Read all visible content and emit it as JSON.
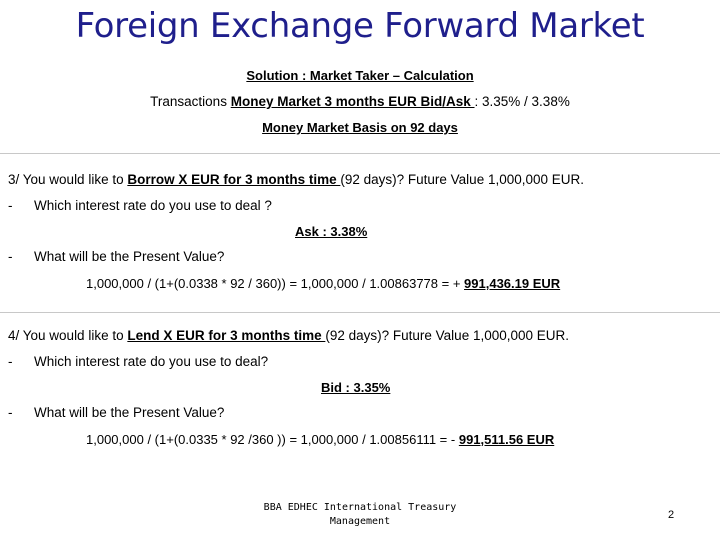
{
  "title": "Foreign Exchange Forward Market",
  "subtitle": "Solution : Market Taker – Calculation",
  "transactions": {
    "prefix": "Transactions ",
    "underlined": "Money Market 3 months EUR Bid/Ask ",
    "suffix": ": 3.35% / 3.38%"
  },
  "basis": "Money Market Basis on 92 days",
  "q3": {
    "prefix": "3/ You would like to ",
    "underlined": "Borrow X EUR for 3 months time ",
    "suffix": "(92 days)?  Future Value 1,000,000 EUR.",
    "dash1": "-",
    "question1": "Which interest rate do you use to deal ?",
    "answer1": "Ask : 3.38%",
    "dash2": "-",
    "question2": "What will be the Present Value?",
    "calc": "1,000,000 / (1+(0.0338 * 92 / 360)) = 1,000,000 / 1.00863778 =  + ",
    "result": "991,436.19 EUR"
  },
  "q4": {
    "prefix": "4/ You would like to ",
    "underlined": "Lend X EUR for 3 months time ",
    "suffix": "(92 days)? Future Value 1,000,000 EUR.",
    "dash1": "-",
    "question1": "Which interest rate do you use to deal?",
    "answer1": "Bid : 3.35%",
    "dash2": "-",
    "question2": "What will be the Present Value?",
    "calc": "1,000,000 / (1+(0.0335 * 92 /360 )) = 1,000,000 / 1.00856111 =  - ",
    "result": "991,511.56 EUR"
  },
  "footer": "BBA EDHEC International Treasury Management",
  "page_number": "2",
  "colors": {
    "title": "#1f1f8c",
    "separator": "#c8c8c8",
    "text": "#000000"
  }
}
